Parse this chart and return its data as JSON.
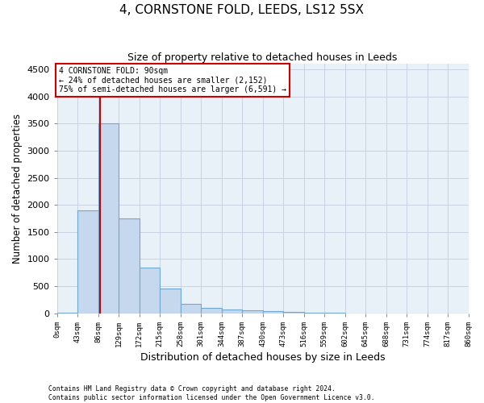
{
  "title": "4, CORNSTONE FOLD, LEEDS, LS12 5SX",
  "subtitle": "Size of property relative to detached houses in Leeds",
  "xlabel": "Distribution of detached houses by size in Leeds",
  "ylabel": "Number of detached properties",
  "bin_edges": [
    0,
    43,
    86,
    129,
    172,
    215,
    258,
    301,
    344,
    387,
    430,
    473,
    516,
    559,
    602,
    645,
    688,
    731,
    774,
    817,
    860
  ],
  "bin_labels": [
    "0sqm",
    "43sqm",
    "86sqm",
    "129sqm",
    "172sqm",
    "215sqm",
    "258sqm",
    "301sqm",
    "344sqm",
    "387sqm",
    "430sqm",
    "473sqm",
    "516sqm",
    "559sqm",
    "602sqm",
    "645sqm",
    "688sqm",
    "731sqm",
    "774sqm",
    "817sqm",
    "860sqm"
  ],
  "bar_heights": [
    5,
    1900,
    3500,
    1750,
    850,
    450,
    175,
    100,
    75,
    60,
    40,
    20,
    10,
    5,
    3,
    2,
    1,
    1,
    0,
    0
  ],
  "bar_color": "#c5d8ed",
  "bar_edge_color": "#6fa8d0",
  "property_line_x": 90,
  "annotation_text_line1": "4 CORNSTONE FOLD: 90sqm",
  "annotation_text_line2": "← 24% of detached houses are smaller (2,152)",
  "annotation_text_line3": "75% of semi-detached houses are larger (6,591) →",
  "ylim": [
    0,
    4600
  ],
  "yticks": [
    0,
    500,
    1000,
    1500,
    2000,
    2500,
    3000,
    3500,
    4000,
    4500
  ],
  "footer_line1": "Contains HM Land Registry data © Crown copyright and database right 2024.",
  "footer_line2": "Contains public sector information licensed under the Open Government Licence v3.0.",
  "annotation_box_color": "#cc0000",
  "annotation_line_color": "#cc0000",
  "grid_color": "#c8d4e3",
  "background_color": "#e8f0f8",
  "title_fontsize": 11,
  "subtitle_fontsize": 9
}
